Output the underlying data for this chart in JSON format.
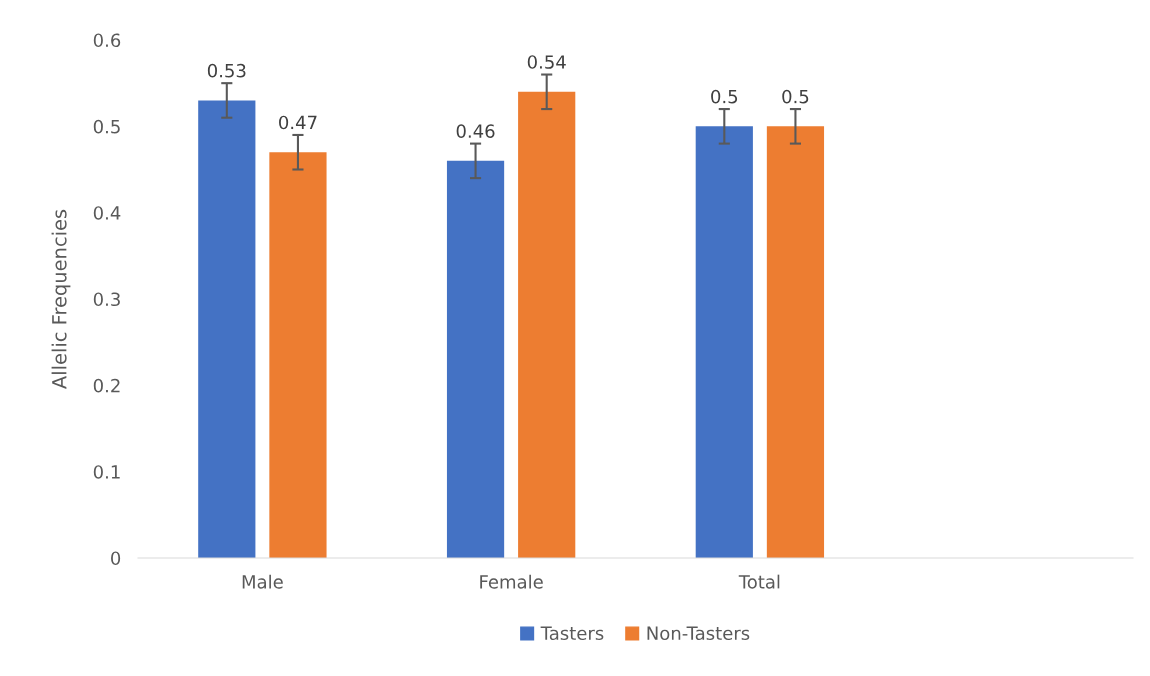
{
  "chart_data": {
    "type": "bar",
    "ylabel": "Allelic Frequencies",
    "categories": [
      "Male",
      "Female",
      "Total",
      null
    ],
    "series": [
      {
        "name": "Tasters",
        "color": "#4472c4",
        "values": [
          0.53,
          0.46,
          0.5,
          null
        ],
        "errors": [
          0.02,
          0.02,
          0.02,
          null
        ]
      },
      {
        "name": "Non-Tasters",
        "color": "#ed7d31",
        "values": [
          0.47,
          0.54,
          0.5,
          null
        ],
        "errors": [
          0.02,
          0.02,
          0.02,
          null
        ]
      }
    ],
    "ylim": [
      0,
      0.6
    ],
    "yticks": [
      0,
      0.1,
      0.2,
      0.3,
      0.4,
      0.5,
      0.6
    ],
    "grid": false,
    "legend": "bottom",
    "data_labels": true
  }
}
